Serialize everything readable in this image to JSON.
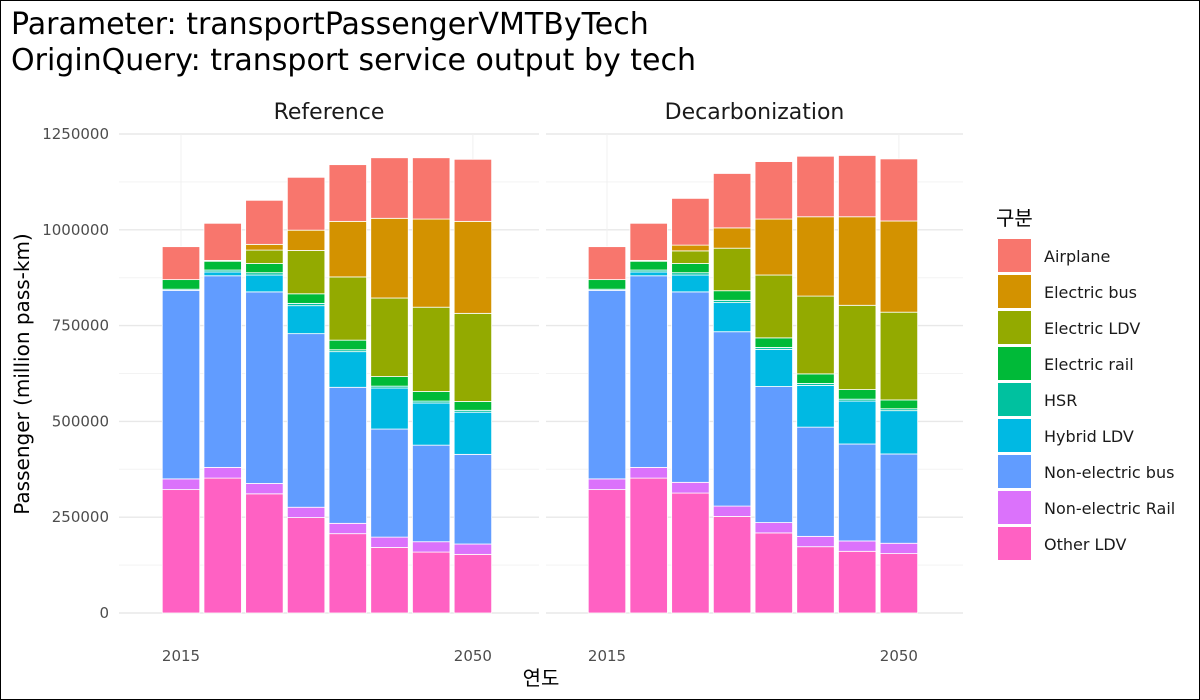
{
  "title_line1": "Parameter: transportPassengerVMTByTech",
  "title_line2": "OriginQuery: transport service output by tech",
  "chart_data": {
    "type": "bar",
    "stacked": true,
    "facets": [
      "Reference",
      "Decarbonization"
    ],
    "xlabel": "연도",
    "ylabel": "Passenger (million pass-km)",
    "x_tick_labels": [
      "2015",
      "2050"
    ],
    "categories": [
      2015,
      2020,
      2025,
      2030,
      2035,
      2040,
      2045,
      2050
    ],
    "ylim": [
      0,
      1250000
    ],
    "yticks": [
      0,
      250000,
      500000,
      750000,
      1000000,
      1250000
    ],
    "grid": true,
    "legend_title": "구분",
    "legend_position": "right",
    "series": [
      {
        "name": "Other LDV",
        "color": "#FF61C3",
        "values": {
          "Reference": [
            322000,
            352000,
            311000,
            249000,
            207000,
            171000,
            159000,
            153000
          ],
          "Decarbonization": [
            322000,
            352000,
            313000,
            252000,
            209000,
            173000,
            161000,
            155000
          ]
        }
      },
      {
        "name": "Non-electric Rail",
        "color": "#DB72FB",
        "values": {
          "Reference": [
            28000,
            28000,
            27000,
            27000,
            27000,
            27000,
            27000,
            27000
          ],
          "Decarbonization": [
            28000,
            28000,
            28000,
            27000,
            27000,
            27000,
            27000,
            27000
          ]
        }
      },
      {
        "name": "Non-electric bus",
        "color": "#619CFF",
        "values": {
          "Reference": [
            492000,
            500000,
            500000,
            453000,
            355000,
            282000,
            252000,
            234000
          ],
          "Decarbonization": [
            492000,
            500000,
            497000,
            455000,
            355000,
            285000,
            253000,
            233000
          ]
        }
      },
      {
        "name": "Hybrid LDV",
        "color": "#00B9E3",
        "values": {
          "Reference": [
            0,
            10000,
            44000,
            73000,
            93000,
            107000,
            110000,
            110000
          ],
          "Decarbonization": [
            0,
            10000,
            44000,
            76000,
            97000,
            109000,
            112000,
            113000
          ]
        }
      },
      {
        "name": "HSR",
        "color": "#00C19F",
        "values": {
          "Reference": [
            3000,
            5000,
            6000,
            6000,
            5000,
            5000,
            5000,
            5000
          ],
          "Decarbonization": [
            3000,
            5000,
            6000,
            6000,
            5000,
            5000,
            5000,
            5000
          ]
        }
      },
      {
        "name": "Electric rail",
        "color": "#00BA38",
        "values": {
          "Reference": [
            25000,
            23000,
            24000,
            25000,
            25000,
            25000,
            25000,
            23000
          ],
          "Decarbonization": [
            25000,
            23000,
            24000,
            25000,
            25000,
            25000,
            25000,
            23000
          ]
        }
      },
      {
        "name": "Electric LDV",
        "color": "#93AA00",
        "values": {
          "Reference": [
            0,
            2000,
            35000,
            113000,
            165000,
            205000,
            220000,
            230000
          ],
          "Decarbonization": [
            0,
            2000,
            33000,
            111000,
            164000,
            203000,
            220000,
            229000
          ]
        }
      },
      {
        "name": "Electric bus",
        "color": "#D39200",
        "values": {
          "Reference": [
            0,
            0,
            15000,
            53000,
            145000,
            208000,
            230000,
            240000
          ],
          "Decarbonization": [
            0,
            0,
            15000,
            53000,
            146000,
            207000,
            231000,
            238000
          ]
        }
      },
      {
        "name": "Airplane",
        "color": "#F8766D",
        "values": {
          "Reference": [
            86000,
            97000,
            115000,
            138000,
            148000,
            158000,
            160000,
            162000
          ],
          "Decarbonization": [
            86000,
            97000,
            122000,
            142000,
            150000,
            158000,
            160000,
            162000
          ]
        }
      }
    ]
  }
}
